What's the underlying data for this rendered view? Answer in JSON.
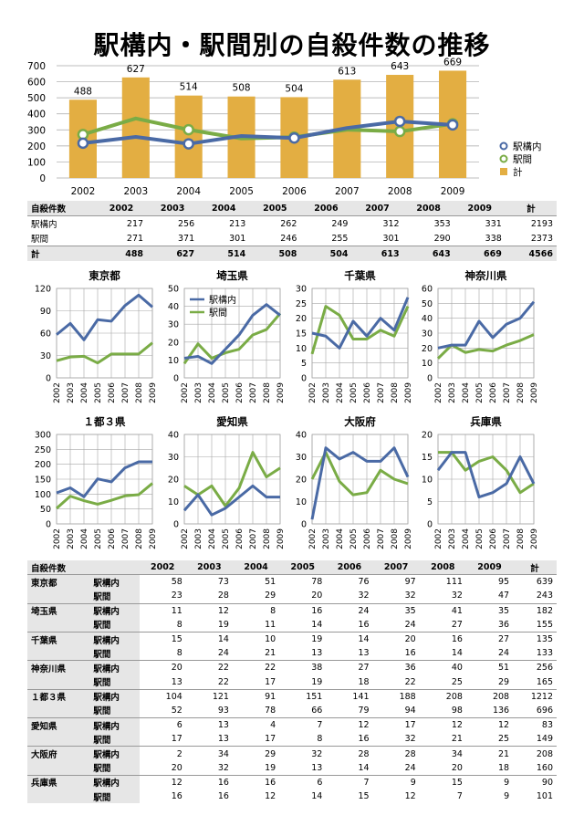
{
  "page": {
    "title": "駅構内・駅間別の自殺件数の推移"
  },
  "colors": {
    "kounai": "#4a6aa5",
    "ekikan": "#7aac46",
    "total": "#e3ae42",
    "grid": "#a6a6a6",
    "header_bg": "#e6e6e6"
  },
  "chart_data": [
    {
      "id": "main",
      "type": "bar",
      "categories": [
        "2002",
        "2003",
        "2004",
        "2005",
        "2006",
        "2007",
        "2008",
        "2009"
      ],
      "ylim": [
        0,
        700
      ],
      "yticks": [
        0,
        100,
        200,
        300,
        400,
        500,
        600,
        700
      ],
      "legend_position": "right",
      "series": [
        {
          "name": "駅構内",
          "type": "line",
          "values": [
            217,
            256,
            213,
            262,
            249,
            312,
            353,
            331
          ]
        },
        {
          "name": "駅間",
          "type": "line",
          "values": [
            271,
            371,
            301,
            246,
            255,
            301,
            290,
            338
          ]
        },
        {
          "name": "計",
          "type": "bar",
          "values": [
            488,
            627,
            514,
            508,
            504,
            613,
            643,
            669
          ]
        }
      ]
    },
    {
      "id": "tokyo",
      "type": "line",
      "title": "東京都",
      "x": [
        "2002",
        "2003",
        "2004",
        "2005",
        "2006",
        "2007",
        "2008",
        "2009"
      ],
      "ylim": [
        0,
        120
      ],
      "yticks": [
        0,
        30,
        60,
        90,
        120
      ],
      "series": [
        {
          "name": "駅構内",
          "values": [
            58,
            73,
            51,
            78,
            76,
            97,
            111,
            95
          ]
        },
        {
          "name": "駅間",
          "values": [
            23,
            28,
            29,
            20,
            32,
            32,
            32,
            47
          ]
        }
      ]
    },
    {
      "id": "saitama",
      "type": "line",
      "title": "埼玉県",
      "x": [
        "2002",
        "2003",
        "2004",
        "2005",
        "2006",
        "2007",
        "2008",
        "2009"
      ],
      "ylim": [
        0,
        50
      ],
      "yticks": [
        0,
        10,
        20,
        30,
        40,
        50
      ],
      "legend_position": "top-left",
      "series": [
        {
          "name": "駅構内",
          "values": [
            11,
            12,
            8,
            16,
            24,
            35,
            41,
            35
          ]
        },
        {
          "name": "駅間",
          "values": [
            8,
            19,
            11,
            14,
            16,
            24,
            27,
            36
          ]
        }
      ]
    },
    {
      "id": "chiba",
      "type": "line",
      "title": "千葉県",
      "x": [
        "2002",
        "2003",
        "2004",
        "2005",
        "2006",
        "2007",
        "2008",
        "2009"
      ],
      "ylim": [
        0,
        30
      ],
      "yticks": [
        0,
        5,
        10,
        15,
        20,
        25,
        30
      ],
      "series": [
        {
          "name": "駅構内",
          "values": [
            15,
            14,
            10,
            19,
            14,
            20,
            16,
            27
          ]
        },
        {
          "name": "駅間",
          "values": [
            8,
            24,
            21,
            13,
            13,
            16,
            14,
            24
          ]
        }
      ]
    },
    {
      "id": "kanagawa",
      "type": "line",
      "title": "神奈川県",
      "x": [
        "2002",
        "2003",
        "2004",
        "2005",
        "2006",
        "2007",
        "2008",
        "2009"
      ],
      "ylim": [
        0,
        60
      ],
      "yticks": [
        0,
        10,
        20,
        30,
        40,
        50,
        60
      ],
      "series": [
        {
          "name": "駅構内",
          "values": [
            20,
            22,
            22,
            38,
            27,
            36,
            40,
            51
          ]
        },
        {
          "name": "駅間",
          "values": [
            13,
            22,
            17,
            19,
            18,
            22,
            25,
            29
          ]
        }
      ]
    },
    {
      "id": "ichito3ken",
      "type": "line",
      "title": "１都３県",
      "x": [
        "2002",
        "2003",
        "2004",
        "2005",
        "2006",
        "2007",
        "2008",
        "2009"
      ],
      "ylim": [
        0,
        300
      ],
      "yticks": [
        0,
        50,
        100,
        150,
        200,
        250,
        300
      ],
      "series": [
        {
          "name": "駅構内",
          "values": [
            104,
            121,
            91,
            151,
            141,
            188,
            208,
            208
          ]
        },
        {
          "name": "駅間",
          "values": [
            52,
            93,
            78,
            66,
            79,
            94,
            98,
            136
          ]
        }
      ]
    },
    {
      "id": "aichi",
      "type": "line",
      "title": "愛知県",
      "x": [
        "2002",
        "2003",
        "2004",
        "2005",
        "2006",
        "2007",
        "2008",
        "2009"
      ],
      "ylim": [
        0,
        40
      ],
      "yticks": [
        0,
        10,
        20,
        30,
        40
      ],
      "series": [
        {
          "name": "駅構内",
          "values": [
            6,
            13,
            4,
            7,
            12,
            17,
            12,
            12
          ]
        },
        {
          "name": "駅間",
          "values": [
            17,
            13,
            17,
            8,
            16,
            32,
            21,
            25
          ]
        }
      ]
    },
    {
      "id": "osaka",
      "type": "line",
      "title": "大阪府",
      "x": [
        "2002",
        "2003",
        "2004",
        "2005",
        "2006",
        "2007",
        "2008",
        "2009"
      ],
      "ylim": [
        0,
        40
      ],
      "yticks": [
        0,
        10,
        20,
        30,
        40
      ],
      "series": [
        {
          "name": "駅構内",
          "values": [
            2,
            34,
            29,
            32,
            28,
            28,
            34,
            21
          ]
        },
        {
          "name": "駅間",
          "values": [
            20,
            32,
            19,
            13,
            14,
            24,
            20,
            18
          ]
        }
      ]
    },
    {
      "id": "hyogo",
      "type": "line",
      "title": "兵庫県",
      "x": [
        "2002",
        "2003",
        "2004",
        "2005",
        "2006",
        "2007",
        "2008",
        "2009"
      ],
      "ylim": [
        0,
        20
      ],
      "yticks": [
        0,
        5,
        10,
        15,
        20
      ],
      "series": [
        {
          "name": "駅構内",
          "values": [
            12,
            16,
            16,
            6,
            7,
            9,
            15,
            9
          ]
        },
        {
          "name": "駅間",
          "values": [
            16,
            16,
            12,
            14,
            15,
            12,
            7,
            9
          ]
        }
      ]
    }
  ],
  "summary_table": {
    "header": [
      "自殺件数",
      "2002",
      "2003",
      "2004",
      "2005",
      "2006",
      "2007",
      "2008",
      "2009",
      "計"
    ],
    "rows": [
      [
        "駅構内",
        "217",
        "256",
        "213",
        "262",
        "249",
        "312",
        "353",
        "331",
        "2193"
      ],
      [
        "駅間",
        "271",
        "371",
        "301",
        "246",
        "255",
        "301",
        "290",
        "338",
        "2373"
      ]
    ],
    "total": [
      "計",
      "488",
      "627",
      "514",
      "508",
      "504",
      "613",
      "643",
      "669",
      "4566"
    ]
  },
  "prefecture_table": {
    "header": [
      "自殺件数",
      "",
      "2002",
      "2003",
      "2004",
      "2005",
      "2006",
      "2007",
      "2008",
      "2009",
      "計"
    ],
    "groups": [
      {
        "pref": "東京都",
        "rows": [
          [
            "駅構内",
            "58",
            "73",
            "51",
            "78",
            "76",
            "97",
            "111",
            "95",
            "639"
          ],
          [
            "駅間",
            "23",
            "28",
            "29",
            "20",
            "32",
            "32",
            "32",
            "47",
            "243"
          ]
        ]
      },
      {
        "pref": "埼玉県",
        "rows": [
          [
            "駅構内",
            "11",
            "12",
            "8",
            "16",
            "24",
            "35",
            "41",
            "35",
            "182"
          ],
          [
            "駅間",
            "8",
            "19",
            "11",
            "14",
            "16",
            "24",
            "27",
            "36",
            "155"
          ]
        ]
      },
      {
        "pref": "千葉県",
        "rows": [
          [
            "駅構内",
            "15",
            "14",
            "10",
            "19",
            "14",
            "20",
            "16",
            "27",
            "135"
          ],
          [
            "駅間",
            "8",
            "24",
            "21",
            "13",
            "13",
            "16",
            "14",
            "24",
            "133"
          ]
        ]
      },
      {
        "pref": "神奈川県",
        "rows": [
          [
            "駅構内",
            "20",
            "22",
            "22",
            "38",
            "27",
            "36",
            "40",
            "51",
            "256"
          ],
          [
            "駅間",
            "13",
            "22",
            "17",
            "19",
            "18",
            "22",
            "25",
            "29",
            "165"
          ]
        ]
      },
      {
        "pref": "１都３県",
        "rows": [
          [
            "駅構内",
            "104",
            "121",
            "91",
            "151",
            "141",
            "188",
            "208",
            "208",
            "1212"
          ],
          [
            "駅間",
            "52",
            "93",
            "78",
            "66",
            "79",
            "94",
            "98",
            "136",
            "696"
          ]
        ]
      },
      {
        "pref": "愛知県",
        "rows": [
          [
            "駅構内",
            "6",
            "13",
            "4",
            "7",
            "12",
            "17",
            "12",
            "12",
            "83"
          ],
          [
            "駅間",
            "17",
            "13",
            "17",
            "8",
            "16",
            "32",
            "21",
            "25",
            "149"
          ]
        ]
      },
      {
        "pref": "大阪府",
        "rows": [
          [
            "駅構内",
            "2",
            "34",
            "29",
            "32",
            "28",
            "28",
            "34",
            "21",
            "208"
          ],
          [
            "駅間",
            "20",
            "32",
            "19",
            "13",
            "14",
            "24",
            "20",
            "18",
            "160"
          ]
        ]
      },
      {
        "pref": "兵庫県",
        "rows": [
          [
            "駅構内",
            "12",
            "16",
            "16",
            "6",
            "7",
            "9",
            "15",
            "9",
            "90"
          ],
          [
            "駅間",
            "16",
            "16",
            "12",
            "14",
            "15",
            "12",
            "7",
            "9",
            "101"
          ]
        ]
      }
    ]
  }
}
